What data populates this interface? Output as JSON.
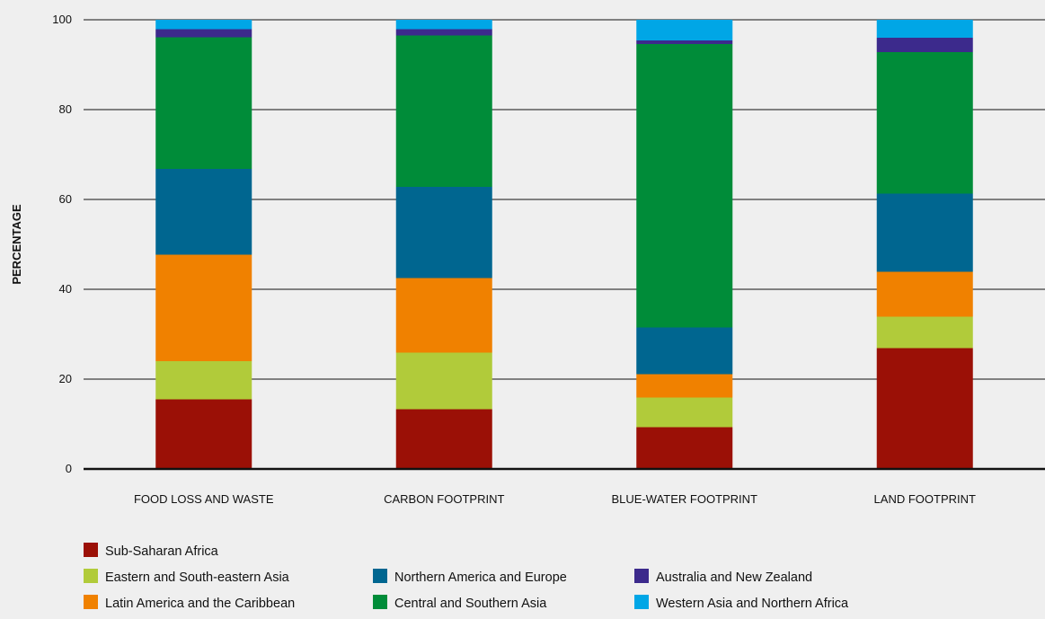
{
  "chart_data": {
    "type": "bar",
    "stacked": true,
    "ylabel": "PERCENTAGE",
    "ylim": [
      0,
      100
    ],
    "yticks": [
      "0",
      "20",
      "40",
      "60",
      "80",
      "100"
    ],
    "grid": "horizontal",
    "legend_position": "bottom",
    "categories": [
      "FOOD LOSS AND WASTE",
      "CARBON FOOTPRINT",
      "BLUE-WATER FOOTPRINT",
      "LAND FOOTPRINT"
    ],
    "series": [
      {
        "name": "Sub-Saharan Africa",
        "color": "#9b1006",
        "values": [
          15.5,
          13.3,
          9.3,
          26.9
        ]
      },
      {
        "name": "Eastern and South-eastern Asia",
        "color": "#b1cb3a",
        "values": [
          8.5,
          12.6,
          6.6,
          7.0
        ]
      },
      {
        "name": "Latin America and the Caribbean",
        "color": "#f08100",
        "values": [
          23.7,
          16.6,
          5.2,
          10.0
        ]
      },
      {
        "name": "Northern America and Europe",
        "color": "#006690",
        "values": [
          19.1,
          20.3,
          10.4,
          17.4
        ]
      },
      {
        "name": "Central and Southern Asia",
        "color": "#008c39",
        "values": [
          29.3,
          33.7,
          63.1,
          31.5
        ]
      },
      {
        "name": "Australia and New Zealand",
        "color": "#3c2a8c",
        "values": [
          1.8,
          1.4,
          0.8,
          3.2
        ]
      },
      {
        "name": "Western Asia and Northern Africa",
        "color": "#00a6e6",
        "values": [
          2.1,
          2.1,
          4.6,
          4.0
        ]
      }
    ]
  }
}
